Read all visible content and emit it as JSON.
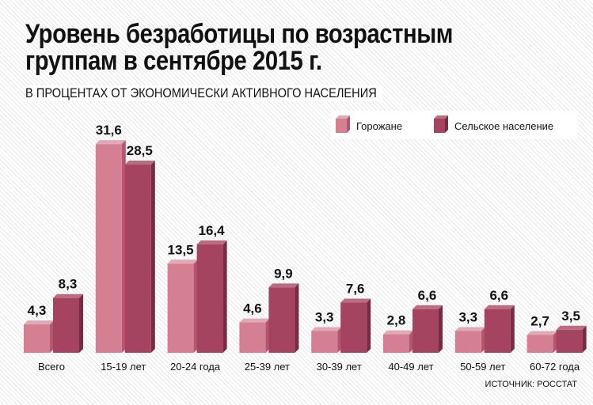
{
  "title_line1": "Уровень безработицы по возрастным",
  "title_line2": "группам в сентябре 2015 г.",
  "subtitle": "В ПРОЦЕНТАХ ОТ ЭКОНОМИЧЕСКИ АКТИВНОГО НАСЕЛЕНИЯ",
  "source": "ИСТОЧНИК: РОССТАТ",
  "colors": {
    "urban": "#d57f93",
    "urban_side": "#b5566d",
    "urban_top": "#e6a7b5",
    "rural": "#a54460",
    "rural_side": "#7a2a42",
    "rural_top": "#c06a82"
  },
  "chart_data": {
    "type": "bar",
    "title": "Уровень безработицы по возрастным группам в сентябре 2015 г.",
    "subtitle": "В ПРОЦЕНТАХ ОТ ЭКОНОМИЧЕСКИ АКТИВНОГО НАСЕЛЕНИЯ",
    "categories": [
      "Всего",
      "15-19 лет",
      "20-24 года",
      "25-39 лет",
      "30-39 лет",
      "40-49 лет",
      "50-59 лет",
      "60-72 года"
    ],
    "series": [
      {
        "name": "Горожане",
        "values": [
          4.3,
          31.6,
          13.5,
          4.6,
          3.3,
          2.8,
          3.3,
          2.7
        ],
        "labels": [
          "4,3",
          "31,6",
          "13,5",
          "4,6",
          "3,3",
          "2,8",
          "3,3",
          "2,7"
        ]
      },
      {
        "name": "Сельское население",
        "values": [
          8.3,
          28.5,
          16.4,
          9.9,
          7.6,
          6.6,
          6.6,
          3.5
        ],
        "labels": [
          "8,3",
          "28,5",
          "16,4",
          "9,9",
          "7,6",
          "6,6",
          "6,6",
          "3,5"
        ]
      }
    ],
    "ylim": [
      0,
      32
    ],
    "legend": "top-right",
    "grid": false,
    "xlabel": "",
    "ylabel": ""
  }
}
